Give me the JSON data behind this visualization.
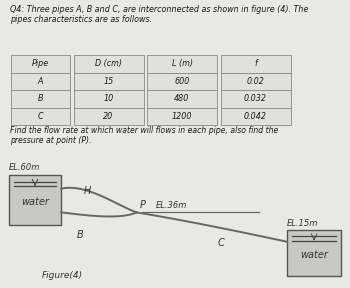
{
  "title_text": "Q4: Three pipes A, B and C, are interconnected as shown in figure (4). The\npipes characteristics are as follows.",
  "table_headers": [
    "Pipe",
    "D (cm)",
    "L (m)",
    "f"
  ],
  "table_rows": [
    [
      "A",
      "15",
      "600",
      "0.02"
    ],
    [
      "B",
      "10",
      "480",
      "0.032"
    ],
    [
      "C",
      "20",
      "1200",
      "0.042"
    ]
  ],
  "problem_text": "Find the flow rate at which water will flows in each pipe, also find the\npressure at point (P).",
  "fig_label": "Figure(4)",
  "el_left": "EL.60m",
  "el_mid": "EL.36m",
  "el_right": "EL.15m",
  "label_water_left": "water",
  "label_water_right": "water",
  "label_H": "H",
  "label_P": "P",
  "label_B": "B",
  "label_C": "C",
  "bg_top": "#e8e8e4",
  "bg_bot": "#dcdcd8",
  "table_face": "#e0e0dc",
  "table_edge": "#888888",
  "text_color": "#1a1a1a",
  "line_color": "#666666",
  "box_face": "#c8c8c4",
  "box_edge": "#555555"
}
